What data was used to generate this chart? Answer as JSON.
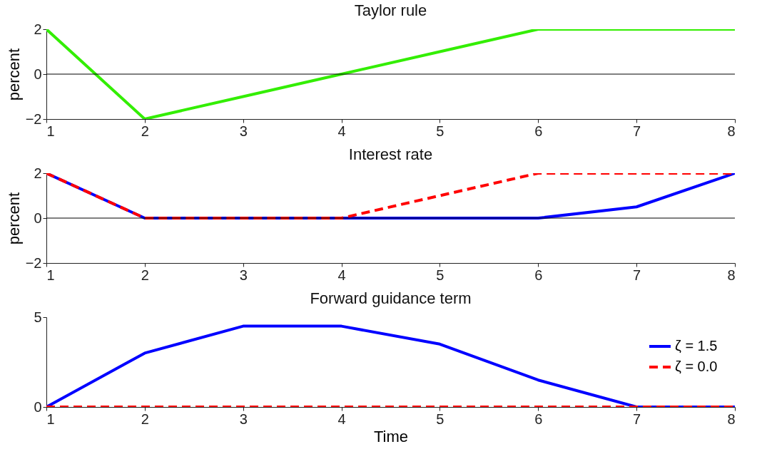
{
  "chart_data": [
    {
      "type": "line",
      "title": "Taylor rule",
      "ylabel": "percent",
      "x": [
        1,
        2,
        3,
        4,
        5,
        6,
        7,
        8
      ],
      "xlim": [
        1,
        8
      ],
      "xticks": [
        1,
        2,
        3,
        4,
        5,
        6,
        7,
        8
      ],
      "ylim": [
        -2,
        2
      ],
      "yticks": [
        -2,
        0,
        2
      ],
      "ref_lines": [
        {
          "axis": "y",
          "value": 0,
          "color": "#000000"
        }
      ],
      "series": [
        {
          "color": "#33ee00",
          "line_style": "solid",
          "values": [
            2,
            -2,
            -1,
            0,
            1,
            2,
            2,
            2
          ]
        }
      ]
    },
    {
      "type": "line",
      "title": "Interest rate",
      "ylabel": "percent",
      "x": [
        1,
        2,
        3,
        4,
        5,
        6,
        7,
        8
      ],
      "xlim": [
        1,
        8
      ],
      "xticks": [
        1,
        2,
        3,
        4,
        5,
        6,
        7,
        8
      ],
      "ylim": [
        -2,
        2
      ],
      "yticks": [
        -2,
        0,
        2
      ],
      "ref_lines": [
        {
          "axis": "y",
          "value": 0,
          "color": "#000000"
        }
      ],
      "series": [
        {
          "color": "#0000ff",
          "line_style": "solid",
          "values": [
            2,
            0,
            0,
            0,
            0,
            0,
            0.5,
            2
          ]
        },
        {
          "color": "#ff0000",
          "line_style": "dashed",
          "values": [
            2,
            0,
            0,
            0,
            1,
            2,
            2,
            2
          ]
        }
      ]
    },
    {
      "type": "line",
      "title": "Forward guidance term",
      "xlabel": "Time",
      "x": [
        1,
        2,
        3,
        4,
        5,
        6,
        7,
        8
      ],
      "xlim": [
        1,
        8
      ],
      "xticks": [
        1,
        2,
        3,
        4,
        5,
        6,
        7,
        8
      ],
      "ylim": [
        0,
        5
      ],
      "yticks": [
        0,
        5
      ],
      "legend": "top right",
      "series": [
        {
          "name": "ζ = 1.5",
          "color": "#0000ff",
          "line_style": "solid",
          "values": [
            0,
            3,
            4.5,
            4.5,
            3.5,
            1.5,
            0,
            0
          ]
        },
        {
          "name": "ζ = 0.0",
          "color": "#ff0000",
          "line_style": "dashed",
          "values": [
            0,
            0,
            0,
            0,
            0,
            0,
            0,
            0
          ]
        }
      ]
    }
  ]
}
